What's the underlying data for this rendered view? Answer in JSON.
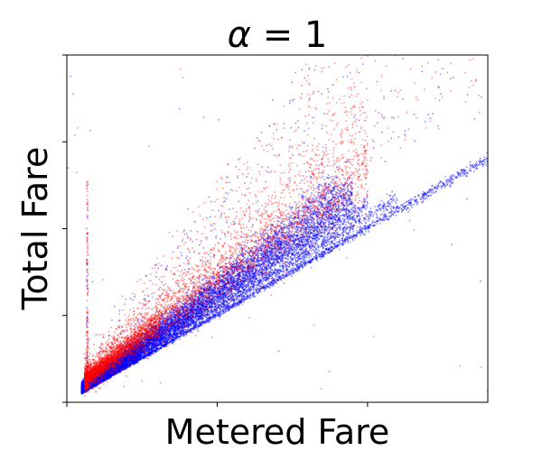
{
  "chart_data": {
    "type": "scatter",
    "title": {
      "symbol": "α",
      "rest": " =  1"
    },
    "xlabel": "Metered Fare",
    "ylabel": "Total Fare",
    "xlim": [
      0,
      140
    ],
    "ylim": [
      0,
      200
    ],
    "x_ticks": [
      0,
      50,
      100
    ],
    "y_ticks": [
      0,
      50,
      100,
      150,
      200
    ],
    "tick_labels_visible": false,
    "grid": false,
    "legend": "none",
    "series": [
      {
        "color": "#ff0000",
        "marker": "x",
        "style": "dense scatter, tipped trips above the main band"
      },
      {
        "color": "#0000ff",
        "marker": "x",
        "style": "dense scatter, main fare band"
      }
    ],
    "bands": [
      {
        "series": 1,
        "slope": 1.0,
        "intercept": 0.5,
        "x_start": 5,
        "x_end": 140,
        "weight": 1.2,
        "spread": 0.6
      },
      {
        "series": 1,
        "slope": 1.06,
        "intercept": 1,
        "x_start": 5,
        "x_end": 110,
        "weight": 1,
        "spread": 1.0
      },
      {
        "series": 1,
        "slope": 1.13,
        "intercept": 1.5,
        "x_start": 5,
        "x_end": 100,
        "weight": 1.4,
        "spread": 1.5
      },
      {
        "series": 1,
        "slope": 1.2,
        "intercept": 2,
        "x_start": 5,
        "x_end": 95,
        "weight": 1.6,
        "spread": 2.0
      },
      {
        "series": 1,
        "slope": 1.28,
        "intercept": 2,
        "x_start": 5,
        "x_end": 95,
        "weight": 1.4,
        "spread": 2.5
      },
      {
        "series": 1,
        "slope": 1.36,
        "intercept": 2.5,
        "x_start": 5,
        "x_end": 90,
        "weight": 1,
        "spread": 3.0
      },
      {
        "series": 0,
        "slope": 1.3,
        "intercept": 5,
        "x_start": 6,
        "x_end": 100,
        "weight": 1.3,
        "spread": 6.0
      },
      {
        "series": 0,
        "slope": 1.5,
        "intercept": 6,
        "x_start": 6,
        "x_end": 100,
        "weight": 0.8,
        "spread": 10.0
      }
    ]
  }
}
